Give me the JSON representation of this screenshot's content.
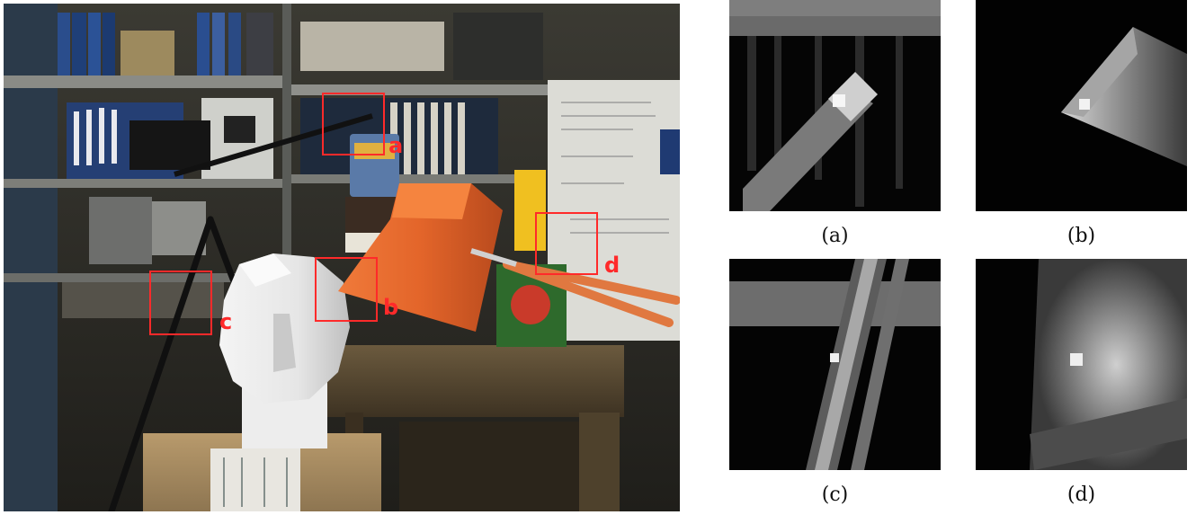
{
  "figure": {
    "scene_image": "tsukuba-style stereo scene with lamp, sculpted head, bookshelves",
    "roi_color": "#ff2a2a",
    "rois": [
      {
        "id": "a",
        "label": "a"
      },
      {
        "id": "b",
        "label": "b"
      },
      {
        "id": "c",
        "label": "c"
      },
      {
        "id": "d",
        "label": "d"
      }
    ],
    "panels": [
      {
        "id": "a",
        "caption": "(a)"
      },
      {
        "id": "b",
        "caption": "(b)"
      },
      {
        "id": "c",
        "caption": "(c)"
      },
      {
        "id": "d",
        "caption": "(d)"
      }
    ]
  }
}
